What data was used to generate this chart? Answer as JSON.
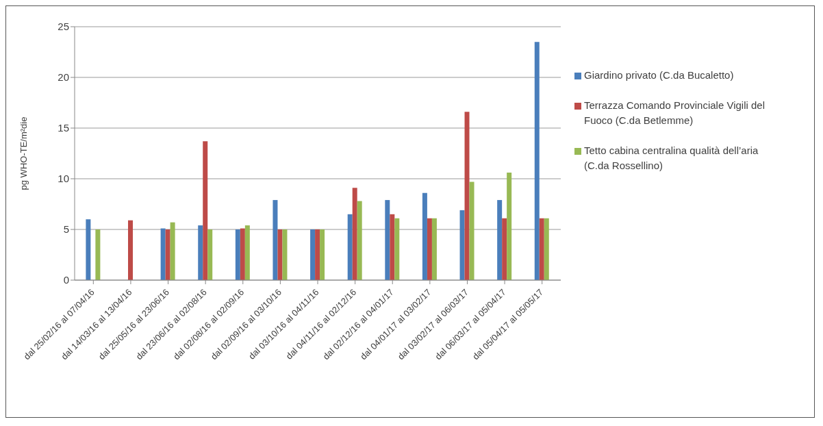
{
  "chart_data": {
    "type": "bar",
    "ylabel": "pg WHO-TE/m²die",
    "categories": [
      "dal 25/02/16 al 07/04/16",
      "dal 14/03/16 al 13/04/16",
      "dal 25/05/16 al 23/06/16",
      "dal 23/06/16 al 02/08/16",
      "dal 02/08/16 al 02/09/16",
      "dal 02/09/16 al 03/10/16",
      "dal 03/10/16 al 04/11/16",
      "dal 04/11/16 al 02/12/16",
      "dal 02/12/16 al 04/01/17",
      "dal 04/01/17 al 03/02/17",
      "dal 03/02/17 al 06/03/17",
      "dal 06/03/17 al 05/04/17",
      "dal 05/04/17 al 05/05/17"
    ],
    "series": [
      {
        "name": "Giardino privato (C.da Bucaletto)",
        "color": "#4a7ebb",
        "values": [
          6.0,
          null,
          5.1,
          5.4,
          5.0,
          7.9,
          5.0,
          6.5,
          7.9,
          8.6,
          6.9,
          7.9,
          23.5
        ]
      },
      {
        "name": "Terrazza Comando Provinciale Vigili del Fuoco (C.da Betlemme)",
        "color": "#be4b48",
        "values": [
          null,
          5.9,
          5.0,
          13.7,
          5.1,
          5.0,
          5.0,
          9.1,
          6.5,
          6.1,
          16.6,
          6.1,
          6.1
        ]
      },
      {
        "name": "Tetto cabina centralina qualità dell’aria (C.da Rossellino)",
        "color": "#98b954",
        "values": [
          5.0,
          null,
          5.7,
          5.0,
          5.4,
          5.0,
          5.0,
          7.8,
          6.1,
          6.1,
          9.7,
          10.6,
          6.1
        ]
      }
    ],
    "ylim": [
      0,
      25
    ],
    "yticks": [
      0,
      5,
      10,
      15,
      20,
      25
    ],
    "grid": "y",
    "legend": "right"
  }
}
